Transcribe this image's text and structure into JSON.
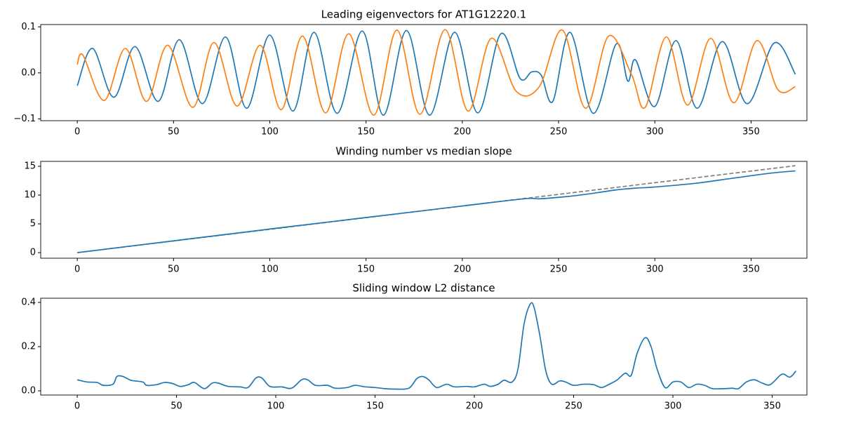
{
  "chart_data": [
    {
      "type": "line",
      "title": "Leading eigenvectors for AT1G12220.1",
      "xlim": [
        -19,
        379
      ],
      "ylim": [
        -0.104,
        0.105
      ],
      "xticks": [
        0,
        50,
        100,
        150,
        200,
        250,
        300,
        350
      ],
      "yticks": [
        {
          "value": -0.1,
          "label": "−0.1"
        },
        {
          "value": 0,
          "label": "0.0"
        },
        0.1
      ],
      "series": [
        {
          "color": "#1f77b4",
          "x": [
            0,
            8,
            19,
            30,
            42,
            53,
            65,
            77,
            88,
            100,
            112,
            123,
            135,
            148,
            159,
            171,
            183,
            196,
            208,
            220,
            230,
            236,
            241,
            247,
            256,
            268,
            280,
            286,
            290,
            300,
            311,
            322,
            335,
            348,
            362,
            373
          ],
          "values": [
            -0.028,
            0.053,
            -0.053,
            0.057,
            -0.062,
            0.072,
            -0.067,
            0.078,
            -0.077,
            0.082,
            -0.083,
            0.088,
            -0.088,
            0.091,
            -0.092,
            0.092,
            -0.092,
            0.088,
            -0.087,
            0.085,
            -0.012,
            0.002,
            -0.005,
            -0.062,
            0.088,
            -0.088,
            0.063,
            -0.018,
            0.028,
            -0.073,
            0.07,
            -0.077,
            0.068,
            -0.067,
            0.065,
            -0.003
          ]
        },
        {
          "color": "#ff7f0e",
          "x": [
            0,
            3,
            14,
            25,
            36,
            47,
            60,
            71,
            83,
            95,
            106,
            117,
            129,
            141,
            154,
            166,
            178,
            191,
            203,
            215,
            228,
            240,
            252,
            264,
            276,
            288,
            295,
            306,
            317,
            329,
            341,
            353,
            364,
            373
          ],
          "values": [
            0.018,
            0.038,
            -0.06,
            0.053,
            -0.062,
            0.06,
            -0.075,
            0.066,
            -0.072,
            0.06,
            -0.08,
            0.08,
            -0.087,
            0.085,
            -0.092,
            0.093,
            -0.09,
            0.094,
            -0.083,
            0.075,
            -0.04,
            -0.03,
            0.093,
            -0.077,
            0.08,
            -0.005,
            -0.075,
            0.078,
            -0.07,
            0.075,
            -0.065,
            0.07,
            -0.037,
            -0.03
          ]
        }
      ]
    },
    {
      "type": "line",
      "title": "Winding number vs median slope",
      "xlim": [
        -19,
        379
      ],
      "ylim": [
        -0.97,
        15.85
      ],
      "xticks": [
        0,
        50,
        100,
        150,
        200,
        250,
        300,
        350
      ],
      "yticks": [
        0,
        5,
        10,
        15
      ],
      "series": [
        {
          "color": "#808080",
          "linestyle": "dashed",
          "x": [
            0,
            373
          ],
          "values": [
            0,
            15.1
          ]
        },
        {
          "color": "#1f77b4",
          "x": [
            0,
            50,
            100,
            150,
            200,
            232,
            240,
            250,
            260,
            270,
            280,
            290,
            300,
            320,
            340,
            360,
            373
          ],
          "values": [
            0,
            2.05,
            4.1,
            6.1,
            8.1,
            9.35,
            9.35,
            9.6,
            9.95,
            10.4,
            10.9,
            11.2,
            11.4,
            12.0,
            12.9,
            13.8,
            14.2
          ]
        }
      ]
    },
    {
      "type": "line",
      "title": "Sliding window L2 distance",
      "xlim": [
        -18.4,
        367.5
      ],
      "ylim": [
        -0.019,
        0.419
      ],
      "xticks": [
        0,
        50,
        100,
        150,
        200,
        250,
        300,
        350
      ],
      "yticks": [
        {
          "value": 0,
          "label": "0.0"
        },
        0.2,
        0.4
      ],
      "series": [
        {
          "color": "#1f77b4",
          "x": [
            0,
            5,
            10,
            13,
            18,
            20,
            23,
            27,
            33,
            35,
            40,
            44,
            48,
            52,
            56,
            59,
            64,
            68,
            71,
            76,
            82,
            86,
            90,
            93,
            97,
            103,
            108,
            113,
            116,
            120,
            126,
            130,
            136,
            140,
            145,
            150,
            155,
            160,
            167,
            171,
            174,
            177,
            181,
            186,
            190,
            196,
            200,
            205,
            208,
            212,
            215,
            219,
            222,
            225,
            228,
            230,
            233,
            236,
            239,
            243,
            246,
            250,
            255,
            260,
            264,
            268,
            272,
            276,
            279,
            282,
            286,
            289,
            292,
            296,
            300,
            304,
            308,
            312,
            316,
            320,
            326,
            330,
            333,
            337,
            341,
            345,
            349,
            354,
            356,
            359,
            362
          ],
          "values": [
            0.05,
            0.04,
            0.038,
            0.025,
            0.03,
            0.065,
            0.065,
            0.048,
            0.04,
            0.025,
            0.028,
            0.038,
            0.033,
            0.02,
            0.028,
            0.038,
            0.01,
            0.035,
            0.035,
            0.02,
            0.018,
            0.015,
            0.058,
            0.058,
            0.02,
            0.018,
            0.012,
            0.05,
            0.05,
            0.025,
            0.025,
            0.012,
            0.015,
            0.025,
            0.018,
            0.015,
            0.01,
            0.008,
            0.012,
            0.055,
            0.065,
            0.05,
            0.015,
            0.03,
            0.018,
            0.02,
            0.018,
            0.03,
            0.02,
            0.03,
            0.048,
            0.04,
            0.1,
            0.3,
            0.39,
            0.38,
            0.25,
            0.09,
            0.03,
            0.045,
            0.04,
            0.025,
            0.03,
            0.028,
            0.015,
            0.03,
            0.05,
            0.08,
            0.07,
            0.17,
            0.24,
            0.2,
            0.1,
            0.015,
            0.04,
            0.04,
            0.015,
            0.03,
            0.025,
            0.01,
            0.01,
            0.012,
            0.01,
            0.04,
            0.05,
            0.035,
            0.028,
            0.07,
            0.075,
            0.062,
            0.09
          ]
        }
      ]
    }
  ]
}
